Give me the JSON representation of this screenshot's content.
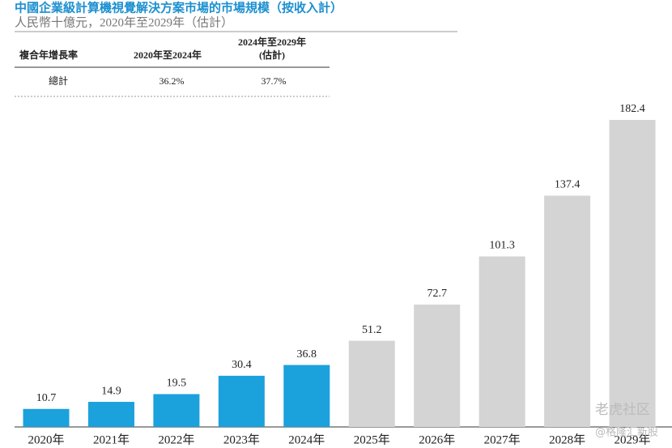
{
  "chart_data": {
    "type": "bar",
    "title": "中國企業級計算機視覺解決方案市場的市場規模（按收入計）",
    "subtitle": "人民幣十億元，2020年至2029年（估計）",
    "categories": [
      "2020年",
      "2021年",
      "2022年",
      "2023年",
      "2024年",
      "2025年",
      "2026年",
      "2027年",
      "2028年",
      "2029年"
    ],
    "values": [
      10.7,
      14.9,
      19.5,
      30.4,
      36.8,
      51.2,
      72.7,
      101.3,
      137.4,
      182.4
    ],
    "colors": [
      "#1ba1dc",
      "#1ba1dc",
      "#1ba1dc",
      "#1ba1dc",
      "#1ba1dc",
      "#d4d4d4",
      "#d4d4d4",
      "#d4d4d4",
      "#d4d4d4",
      "#d4d4d4"
    ]
  },
  "table": {
    "header": [
      "複合年增長率",
      "2020年至2024年",
      [
        "2024年至2029年",
        "(估計)"
      ]
    ],
    "rows": [
      [
        "總計",
        "36.2%",
        "37.7%"
      ]
    ]
  },
  "watermarks": [
    "老虎社区",
    "@格隆汇新股"
  ]
}
